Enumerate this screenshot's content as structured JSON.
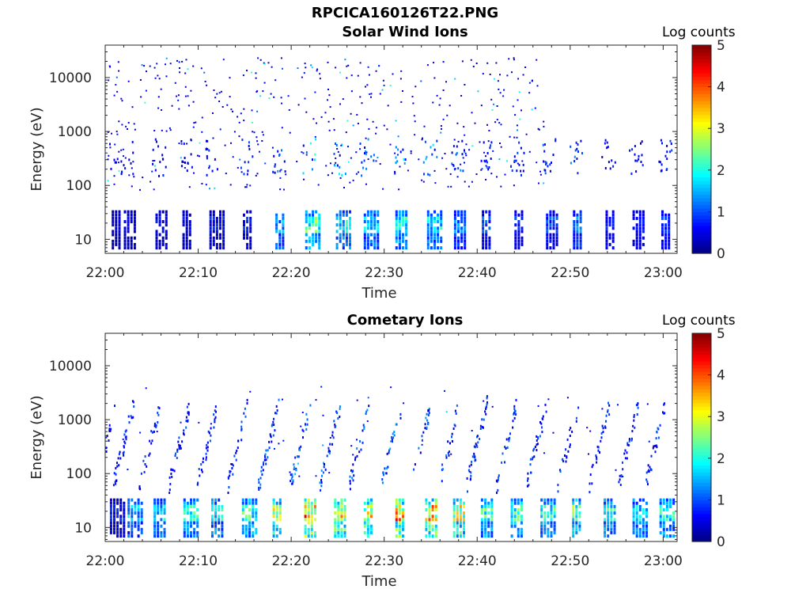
{
  "figure_title": "RPCICA160126T22.PNG",
  "chart_data": [
    {
      "type": "heatmap",
      "title": "Solar Wind Ions",
      "xlabel": "Time",
      "ylabel": "Energy (eV)",
      "x_ticks": [
        "22:00",
        "22:10",
        "22:20",
        "22:30",
        "22:40",
        "22:50",
        "23:00"
      ],
      "x_range_minutes": [
        0,
        61.5
      ],
      "y_scale": "log",
      "y_ticks": [
        "10",
        "100",
        "1000",
        "10000"
      ],
      "ylim": [
        5.5,
        40000
      ],
      "colorbar": {
        "label": "Log counts",
        "range": [
          0,
          5
        ],
        "ticks": [
          "0",
          "1",
          "2",
          "3",
          "4",
          "5"
        ],
        "colormap": "jet"
      },
      "low_band_bursts": [
        {
          "t": 0.7,
          "level": 0.4
        },
        {
          "t": 2.0,
          "level": 0.5
        },
        {
          "t": 5.4,
          "level": 0.6
        },
        {
          "t": 8.3,
          "level": 0.6
        },
        {
          "t": 11.2,
          "level": 0.7
        },
        {
          "t": 14.8,
          "level": 0.8
        },
        {
          "t": 18.3,
          "level": 1.4
        },
        {
          "t": 21.5,
          "level": 2.2
        },
        {
          "t": 24.8,
          "level": 1.8
        },
        {
          "t": 27.8,
          "level": 1.6
        },
        {
          "t": 31.2,
          "level": 1.9
        },
        {
          "t": 34.6,
          "level": 1.7
        },
        {
          "t": 37.5,
          "level": 1.2
        },
        {
          "t": 40.5,
          "level": 1.0
        },
        {
          "t": 44.0,
          "level": 0.8
        },
        {
          "t": 47.4,
          "level": 0.9
        },
        {
          "t": 50.3,
          "level": 1.2
        },
        {
          "t": 53.8,
          "level": 0.7
        },
        {
          "t": 56.7,
          "level": 0.6
        },
        {
          "t": 59.8,
          "level": 0.8
        }
      ]
    },
    {
      "type": "heatmap",
      "title": "Cometary Ions",
      "xlabel": "Time",
      "ylabel": "Energy (eV)",
      "x_ticks": [
        "22:00",
        "22:10",
        "22:20",
        "22:30",
        "22:40",
        "22:50",
        "23:00"
      ],
      "x_range_minutes": [
        0,
        61.5
      ],
      "y_scale": "log",
      "y_ticks": [
        "10",
        "100",
        "1000",
        "10000"
      ],
      "ylim": [
        5.5,
        40000
      ],
      "colorbar": {
        "label": "Log counts",
        "range": [
          0,
          5
        ],
        "ticks": [
          "0",
          "1",
          "2",
          "3",
          "4",
          "5"
        ],
        "colormap": "jet"
      },
      "low_band_bursts": [
        {
          "t": 0.5,
          "level": 0.7
        },
        {
          "t": 2.4,
          "level": 1.5
        },
        {
          "t": 5.2,
          "level": 1.6
        },
        {
          "t": 8.4,
          "level": 1.9
        },
        {
          "t": 11.4,
          "level": 1.8
        },
        {
          "t": 14.7,
          "level": 2.0
        },
        {
          "t": 18.0,
          "level": 2.6
        },
        {
          "t": 21.4,
          "level": 3.6
        },
        {
          "t": 24.6,
          "level": 3.1
        },
        {
          "t": 27.8,
          "level": 2.9
        },
        {
          "t": 31.2,
          "level": 3.4
        },
        {
          "t": 34.4,
          "level": 3.2
        },
        {
          "t": 37.4,
          "level": 2.8
        },
        {
          "t": 40.4,
          "level": 2.0
        },
        {
          "t": 43.6,
          "level": 2.1
        },
        {
          "t": 46.8,
          "level": 2.0
        },
        {
          "t": 50.2,
          "level": 2.2
        },
        {
          "t": 53.6,
          "level": 1.9
        },
        {
          "t": 56.7,
          "level": 1.8
        },
        {
          "t": 59.6,
          "level": 1.9
        }
      ]
    }
  ]
}
